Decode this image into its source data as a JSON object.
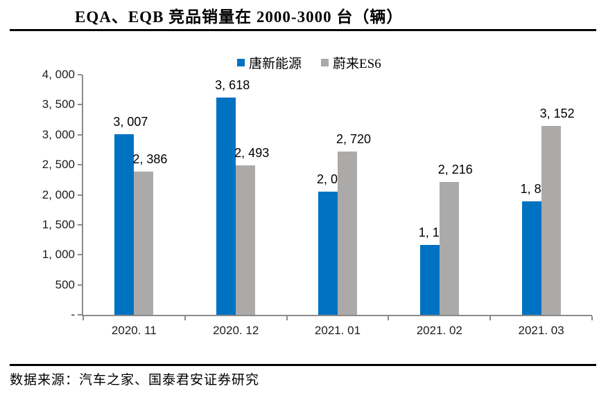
{
  "title": "EQA、EQB 竞品销量在 2000-3000 台（辆）",
  "source": "数据来源：汽车之家、国泰君安证券研究",
  "colors": {
    "series1_blue": "#0072C2",
    "series2_gray": "#ACA9A9",
    "axis_gray": "#8a8a8a",
    "text_black": "#000000"
  },
  "chart_data": {
    "type": "bar",
    "title": "EQA、EQB 竞品销量在 2000-3000 台（辆）",
    "categories": [
      "2020. 11",
      "2020. 12",
      "2021. 01",
      "2021. 02",
      "2021. 03"
    ],
    "series": [
      {
        "name": "唐新能源",
        "color": "#0072C2",
        "values": [
          3007,
          3618,
          2049,
          1169,
          1891
        ],
        "labels": [
          "3, 007",
          "3, 618",
          "2, 049",
          "1, 169",
          "1, 891"
        ]
      },
      {
        "name": "蔚来ES6",
        "color": "#ACA9A9",
        "values": [
          2386,
          2493,
          2720,
          2216,
          3152
        ],
        "labels": [
          "2, 386",
          "2, 493",
          "2, 720",
          "2, 216",
          "3, 152"
        ]
      }
    ],
    "ylim": [
      0,
      4000
    ],
    "ytick_step": 500,
    "ytick_labels_bottom_up": [
      "-",
      "500",
      "1, 000",
      "1, 500",
      "2, 000",
      "2, 500",
      "3, 000",
      "3, 500",
      "4, 000"
    ],
    "xlabel": "",
    "ylabel": "",
    "grid": false,
    "legend_position": "top"
  }
}
